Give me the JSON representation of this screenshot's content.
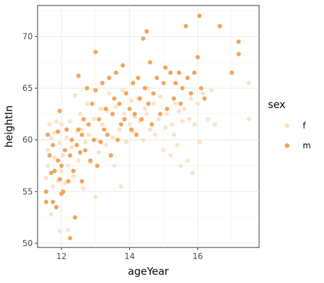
{
  "chart_data": {
    "type": "scatter",
    "title": "",
    "xlabel": "ageYear",
    "ylabel": "heightIn",
    "xlim": [
      11.3,
      17.8
    ],
    "ylim": [
      49.6,
      73
    ],
    "x_ticks": [
      12,
      14,
      16
    ],
    "y_ticks": [
      50,
      55,
      60,
      65,
      70
    ],
    "grid": true,
    "legend": {
      "title": "sex",
      "position": "right",
      "entries": [
        {
          "label": "f",
          "color": "#fde3c8"
        },
        {
          "label": "m",
          "color": "#f4a45c"
        }
      ]
    },
    "series": [
      {
        "name": "f",
        "color": "#fde3c8",
        "points": [
          [
            11.55,
            56.3
          ],
          [
            11.6,
            57.5
          ],
          [
            11.6,
            59.0
          ],
          [
            11.65,
            61.5
          ],
          [
            11.7,
            52.8
          ],
          [
            11.75,
            55.5
          ],
          [
            11.8,
            58.3
          ],
          [
            11.8,
            60.7
          ],
          [
            11.85,
            61.8
          ],
          [
            11.9,
            56.0
          ],
          [
            11.95,
            59.7
          ],
          [
            12.0,
            57.0
          ],
          [
            12.0,
            61.5
          ],
          [
            12.05,
            58.5
          ],
          [
            12.1,
            55.8
          ],
          [
            12.15,
            60.2
          ],
          [
            12.2,
            57.5
          ],
          [
            12.25,
            61.8
          ],
          [
            12.3,
            59.3
          ],
          [
            12.35,
            56.5
          ],
          [
            12.4,
            64.3
          ],
          [
            12.45,
            60.8
          ],
          [
            12.5,
            58.0
          ],
          [
            12.55,
            62.5
          ],
          [
            12.6,
            61.0
          ],
          [
            12.65,
            55.3
          ],
          [
            12.7,
            59.8
          ],
          [
            12.75,
            63.5
          ],
          [
            12.8,
            60.5
          ],
          [
            12.85,
            57.8
          ],
          [
            12.95,
            62.0
          ],
          [
            13.0,
            54.5
          ],
          [
            13.05,
            60.0
          ],
          [
            13.1,
            58.8
          ],
          [
            13.15,
            63.0
          ],
          [
            13.2,
            61.5
          ],
          [
            13.3,
            59.5
          ],
          [
            13.35,
            62.8
          ],
          [
            13.4,
            64.5
          ],
          [
            13.5,
            60.2
          ],
          [
            13.55,
            57.5
          ],
          [
            13.6,
            63.2
          ],
          [
            13.7,
            61.0
          ],
          [
            13.75,
            55.5
          ],
          [
            13.8,
            64.8
          ],
          [
            13.85,
            62.5
          ],
          [
            13.9,
            59.8
          ],
          [
            14.0,
            61.5
          ],
          [
            14.05,
            63.8
          ],
          [
            14.1,
            60.8
          ],
          [
            14.15,
            62.2
          ],
          [
            14.25,
            64.0
          ],
          [
            14.3,
            61.8
          ],
          [
            14.4,
            60.0
          ],
          [
            14.45,
            63.0
          ],
          [
            14.5,
            62.5
          ],
          [
            14.55,
            65.0
          ],
          [
            14.6,
            61.0
          ],
          [
            14.7,
            63.5
          ],
          [
            14.75,
            60.5
          ],
          [
            14.85,
            62.0
          ],
          [
            14.9,
            64.2
          ],
          [
            15.0,
            59.0
          ],
          [
            15.05,
            61.2
          ],
          [
            15.1,
            62.5
          ],
          [
            15.2,
            58.5
          ],
          [
            15.25,
            61.5
          ],
          [
            15.3,
            60.5
          ],
          [
            15.35,
            63.5
          ],
          [
            15.4,
            59.5
          ],
          [
            15.45,
            62.8
          ],
          [
            15.5,
            57.5
          ],
          [
            15.55,
            61.8
          ],
          [
            15.6,
            63.0
          ],
          [
            15.7,
            58.0
          ],
          [
            15.75,
            62.0
          ],
          [
            15.8,
            64.0
          ],
          [
            15.85,
            56.8
          ],
          [
            15.9,
            61.5
          ],
          [
            16.0,
            63.5
          ],
          [
            16.05,
            59.8
          ],
          [
            16.15,
            64.5
          ],
          [
            16.3,
            62.0
          ],
          [
            16.4,
            64.8
          ],
          [
            16.5,
            61.5
          ],
          [
            17.5,
            65.5
          ],
          [
            17.5,
            62.0
          ],
          [
            11.95,
            51.2
          ],
          [
            12.2,
            51.3
          ],
          [
            11.7,
            60.2
          ]
        ]
      },
      {
        "name": "m",
        "color": "#f4a45c",
        "points": [
          [
            11.55,
            55.0
          ],
          [
            11.6,
            60.5
          ],
          [
            11.65,
            58.5
          ],
          [
            11.7,
            56.8
          ],
          [
            11.75,
            59.5
          ],
          [
            11.75,
            54.0
          ],
          [
            11.8,
            57.0
          ],
          [
            11.85,
            53.5
          ],
          [
            11.9,
            58.0
          ],
          [
            11.9,
            60.8
          ],
          [
            11.95,
            56.2
          ],
          [
            11.95,
            62.8
          ],
          [
            12.0,
            57.5
          ],
          [
            12.05,
            55.0
          ],
          [
            12.1,
            59.0
          ],
          [
            12.15,
            61.0
          ],
          [
            12.2,
            56.0
          ],
          [
            12.25,
            58.5
          ],
          [
            12.25,
            50.5
          ],
          [
            12.3,
            60.0
          ],
          [
            12.35,
            57.0
          ],
          [
            12.4,
            52.5
          ],
          [
            12.45,
            59.5
          ],
          [
            12.5,
            61.0
          ],
          [
            12.5,
            66.2
          ],
          [
            12.55,
            58.8
          ],
          [
            12.6,
            60.5
          ],
          [
            12.65,
            62.0
          ],
          [
            12.7,
            59.0
          ],
          [
            12.75,
            65.0
          ],
          [
            12.8,
            61.5
          ],
          [
            12.85,
            58.0
          ],
          [
            12.9,
            63.5
          ],
          [
            12.95,
            60.0
          ],
          [
            13.0,
            68.5
          ],
          [
            13.0,
            64.8
          ],
          [
            13.05,
            57.5
          ],
          [
            13.1,
            62.0
          ],
          [
            13.15,
            59.8
          ],
          [
            13.2,
            65.5
          ],
          [
            13.25,
            61.0
          ],
          [
            13.3,
            63.0
          ],
          [
            13.35,
            60.5
          ],
          [
            13.4,
            66.0
          ],
          [
            13.45,
            58.5
          ],
          [
            13.5,
            62.5
          ],
          [
            13.55,
            64.0
          ],
          [
            13.6,
            66.5
          ],
          [
            13.65,
            60.0
          ],
          [
            13.7,
            63.5
          ],
          [
            13.75,
            61.5
          ],
          [
            13.8,
            67.2
          ],
          [
            13.85,
            62.0
          ],
          [
            13.9,
            64.5
          ],
          [
            14.0,
            63.0
          ],
          [
            14.05,
            61.0
          ],
          [
            14.1,
            65.5
          ],
          [
            14.15,
            62.5
          ],
          [
            14.2,
            60.5
          ],
          [
            14.25,
            66.0
          ],
          [
            14.3,
            64.0
          ],
          [
            14.35,
            62.0
          ],
          [
            14.4,
            69.8
          ],
          [
            14.45,
            65.0
          ],
          [
            14.5,
            70.5
          ],
          [
            14.55,
            63.5
          ],
          [
            14.6,
            67.5
          ],
          [
            14.65,
            61.5
          ],
          [
            14.7,
            64.5
          ],
          [
            14.8,
            66.0
          ],
          [
            14.9,
            62.5
          ],
          [
            15.0,
            65.5
          ],
          [
            15.05,
            67.0
          ],
          [
            15.1,
            63.0
          ],
          [
            15.2,
            66.5
          ],
          [
            15.3,
            64.0
          ],
          [
            15.35,
            65.5
          ],
          [
            15.45,
            66.5
          ],
          [
            15.5,
            63.5
          ],
          [
            15.55,
            65.0
          ],
          [
            15.65,
            71.0
          ],
          [
            15.7,
            66.0
          ],
          [
            15.8,
            64.5
          ],
          [
            15.9,
            66.5
          ],
          [
            16.0,
            68.0
          ],
          [
            16.05,
            72.0
          ],
          [
            16.1,
            65.0
          ],
          [
            16.2,
            64.0
          ],
          [
            16.65,
            71.0
          ],
          [
            17.0,
            66.5
          ],
          [
            17.2,
            69.5
          ],
          [
            17.2,
            68.3
          ],
          [
            11.55,
            54.0
          ],
          [
            12.0,
            54.8
          ],
          [
            12.6,
            56.0
          ]
        ]
      }
    ]
  }
}
